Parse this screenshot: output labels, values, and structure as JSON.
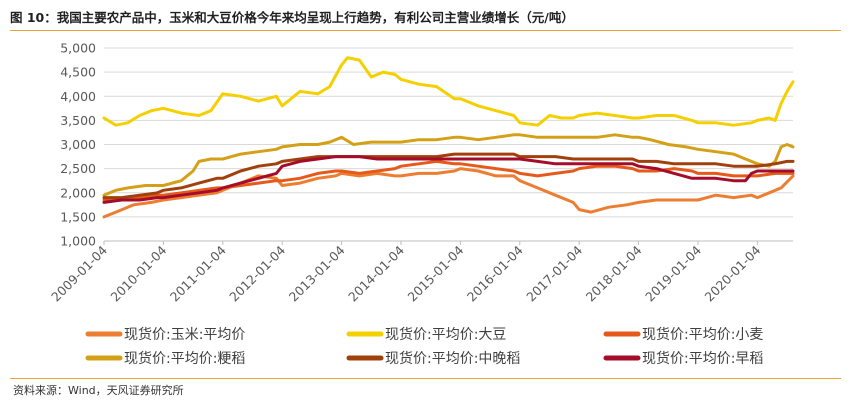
{
  "header": {
    "title": "图 10：我国主要农产品中，玉米和大豆价格今年来均呈现上行趋势，有利公司主营业绩增长（元/吨）"
  },
  "footer": {
    "source": "资料来源：Wind，天风证券研究所"
  },
  "chart_data": {
    "type": "line",
    "xlabel": "",
    "ylabel": "",
    "ylim": [
      1000,
      5000
    ],
    "y_ticks": [
      "5,000",
      "4,500",
      "4,000",
      "3,500",
      "3,000",
      "2,500",
      "2,000",
      "1,500",
      "1,000"
    ],
    "x_ticks": [
      "2009-01-04",
      "2010-01-04",
      "2011-01-04",
      "2012-01-04",
      "2013-01-04",
      "2014-01-04",
      "2015-01-04",
      "2016-01-04",
      "2017-01-04",
      "2018-01-04",
      "2019-01-04",
      "2020-01-04"
    ],
    "xlim": [
      2009.0,
      2020.6
    ],
    "grid": "horizontal",
    "legend_position": "bottom",
    "series": [
      {
        "name": "现货价:玉米:平均价",
        "color": "#ED7D31",
        "x": [
          2009.0,
          2009.2,
          2009.5,
          2009.8,
          2010.0,
          2010.3,
          2010.6,
          2010.9,
          2011.0,
          2011.3,
          2011.6,
          2011.9,
          2012.0,
          2012.3,
          2012.6,
          2012.9,
          2013.0,
          2013.3,
          2013.6,
          2013.9,
          2014.0,
          2014.3,
          2014.6,
          2014.9,
          2015.0,
          2015.3,
          2015.6,
          2015.9,
          2016.0,
          2016.3,
          2016.6,
          2016.8,
          2016.9,
          2017.0,
          2017.2,
          2017.5,
          2017.8,
          2018.0,
          2018.3,
          2018.6,
          2018.9,
          2019.0,
          2019.3,
          2019.6,
          2019.9,
          2020.0,
          2020.2,
          2020.4,
          2020.6
        ],
        "y": [
          1500,
          1600,
          1750,
          1800,
          1850,
          1900,
          1950,
          2000,
          2050,
          2200,
          2350,
          2300,
          2150,
          2200,
          2300,
          2350,
          2400,
          2350,
          2400,
          2350,
          2350,
          2400,
          2400,
          2450,
          2500,
          2450,
          2350,
          2350,
          2250,
          2100,
          1950,
          1850,
          1800,
          1650,
          1600,
          1700,
          1750,
          1800,
          1850,
          1850,
          1850,
          1850,
          1950,
          1900,
          1950,
          1900,
          2000,
          2100,
          2350
        ]
      },
      {
        "name": "现货价:平均价:大豆",
        "color": "#F5D000",
        "x": [
          2009.0,
          2009.2,
          2009.4,
          2009.6,
          2009.8,
          2010.0,
          2010.3,
          2010.6,
          2010.8,
          2011.0,
          2011.3,
          2011.6,
          2011.9,
          2012.0,
          2012.3,
          2012.6,
          2012.8,
          2013.0,
          2013.1,
          2013.3,
          2013.5,
          2013.7,
          2013.9,
          2014.0,
          2014.3,
          2014.6,
          2014.9,
          2015.0,
          2015.3,
          2015.6,
          2015.9,
          2016.0,
          2016.3,
          2016.5,
          2016.7,
          2016.9,
          2017.0,
          2017.3,
          2017.6,
          2017.9,
          2018.0,
          2018.3,
          2018.6,
          2018.9,
          2019.0,
          2019.3,
          2019.6,
          2019.9,
          2020.0,
          2020.2,
          2020.3,
          2020.4,
          2020.5,
          2020.6
        ],
        "y": [
          3550,
          3400,
          3450,
          3600,
          3700,
          3750,
          3650,
          3600,
          3700,
          4050,
          4000,
          3900,
          4000,
          3800,
          4100,
          4050,
          4200,
          4650,
          4800,
          4750,
          4400,
          4500,
          4450,
          4350,
          4250,
          4200,
          3950,
          3950,
          3800,
          3700,
          3600,
          3450,
          3400,
          3600,
          3550,
          3550,
          3600,
          3650,
          3600,
          3550,
          3550,
          3600,
          3600,
          3500,
          3450,
          3450,
          3400,
          3450,
          3500,
          3550,
          3500,
          3850,
          4100,
          4300
        ]
      },
      {
        "name": "现货价:平均价:小麦",
        "color": "#E55A1B",
        "x": [
          2009.0,
          2009.3,
          2009.6,
          2009.9,
          2010.0,
          2010.3,
          2010.6,
          2010.9,
          2011.0,
          2011.3,
          2011.6,
          2011.9,
          2012.0,
          2012.3,
          2012.6,
          2012.9,
          2013.0,
          2013.3,
          2013.6,
          2013.9,
          2014.0,
          2014.3,
          2014.6,
          2014.9,
          2015.0,
          2015.3,
          2015.6,
          2015.9,
          2016.0,
          2016.3,
          2016.6,
          2016.9,
          2017.0,
          2017.3,
          2017.6,
          2017.9,
          2018.0,
          2018.3,
          2018.6,
          2018.9,
          2019.0,
          2019.3,
          2019.6,
          2019.9,
          2020.0,
          2020.3,
          2020.6
        ],
        "y": [
          1850,
          1850,
          1900,
          1950,
          1950,
          2000,
          2050,
          2100,
          2100,
          2150,
          2200,
          2250,
          2250,
          2300,
          2400,
          2450,
          2450,
          2400,
          2450,
          2500,
          2550,
          2600,
          2650,
          2600,
          2600,
          2550,
          2500,
          2450,
          2400,
          2350,
          2400,
          2450,
          2500,
          2550,
          2550,
          2500,
          2450,
          2450,
          2500,
          2450,
          2400,
          2400,
          2350,
          2350,
          2350,
          2400,
          2400
        ]
      },
      {
        "name": "现货价:平均价:粳稻",
        "color": "#D4A017",
        "x": [
          2009.0,
          2009.2,
          2009.4,
          2009.7,
          2010.0,
          2010.3,
          2010.5,
          2010.6,
          2010.8,
          2011.0,
          2011.3,
          2011.6,
          2011.9,
          2012.0,
          2012.3,
          2012.6,
          2012.8,
          2013.0,
          2013.2,
          2013.5,
          2013.8,
          2014.0,
          2014.3,
          2014.6,
          2014.9,
          2015.0,
          2015.3,
          2015.6,
          2015.9,
          2016.0,
          2016.3,
          2016.6,
          2016.9,
          2017.0,
          2017.3,
          2017.6,
          2017.9,
          2018.0,
          2018.2,
          2018.5,
          2018.8,
          2019.0,
          2019.3,
          2019.6,
          2019.8,
          2019.9,
          2020.0,
          2020.2,
          2020.3,
          2020.4,
          2020.5,
          2020.6
        ],
        "y": [
          1950,
          2050,
          2100,
          2150,
          2150,
          2250,
          2450,
          2650,
          2700,
          2700,
          2800,
          2850,
          2900,
          2950,
          3000,
          3000,
          3050,
          3150,
          3000,
          3050,
          3050,
          3050,
          3100,
          3100,
          3150,
          3150,
          3100,
          3150,
          3200,
          3200,
          3150,
          3150,
          3150,
          3150,
          3150,
          3200,
          3150,
          3150,
          3100,
          3000,
          2950,
          2900,
          2850,
          2800,
          2700,
          2650,
          2600,
          2550,
          2650,
          2950,
          3000,
          2950
        ]
      },
      {
        "name": "现货价:平均价:中晚稻",
        "color": "#A0400C",
        "x": [
          2009.0,
          2009.3,
          2009.6,
          2009.9,
          2010.0,
          2010.3,
          2010.6,
          2010.9,
          2011.0,
          2011.3,
          2011.6,
          2011.9,
          2012.0,
          2012.3,
          2012.6,
          2012.9,
          2013.0,
          2013.3,
          2013.6,
          2013.9,
          2014.0,
          2014.3,
          2014.6,
          2014.9,
          2015.0,
          2015.3,
          2015.6,
          2015.9,
          2016.0,
          2016.3,
          2016.6,
          2016.9,
          2017.0,
          2017.3,
          2017.6,
          2017.9,
          2018.0,
          2018.3,
          2018.6,
          2018.9,
          2019.0,
          2019.3,
          2019.6,
          2019.9,
          2020.0,
          2020.3,
          2020.5,
          2020.6
        ],
        "y": [
          1900,
          1900,
          1950,
          2000,
          2050,
          2100,
          2200,
          2300,
          2300,
          2450,
          2550,
          2600,
          2650,
          2700,
          2750,
          2750,
          2750,
          2750,
          2750,
          2750,
          2750,
          2750,
          2750,
          2800,
          2800,
          2800,
          2800,
          2800,
          2750,
          2750,
          2750,
          2700,
          2700,
          2700,
          2700,
          2700,
          2650,
          2650,
          2600,
          2600,
          2600,
          2600,
          2550,
          2550,
          2550,
          2600,
          2650,
          2650
        ]
      },
      {
        "name": "现货价:平均价:早稻",
        "color": "#A50C2A",
        "x": [
          2009.0,
          2009.3,
          2009.6,
          2009.9,
          2010.0,
          2010.3,
          2010.6,
          2010.9,
          2011.0,
          2011.3,
          2011.6,
          2011.9,
          2012.0,
          2012.3,
          2012.6,
          2012.9,
          2013.0,
          2013.3,
          2013.6,
          2013.9,
          2014.0,
          2014.3,
          2014.6,
          2014.9,
          2015.0,
          2015.3,
          2015.6,
          2015.9,
          2016.0,
          2016.3,
          2016.6,
          2016.9,
          2017.0,
          2017.3,
          2017.6,
          2017.9,
          2018.0,
          2018.3,
          2018.6,
          2018.9,
          2019.0,
          2019.3,
          2019.6,
          2019.8,
          2019.9,
          2020.0,
          2020.3,
          2020.6
        ],
        "y": [
          1800,
          1850,
          1850,
          1900,
          1900,
          1950,
          2000,
          2050,
          2100,
          2200,
          2300,
          2400,
          2550,
          2650,
          2700,
          2750,
          2750,
          2750,
          2700,
          2700,
          2700,
          2700,
          2700,
          2700,
          2700,
          2700,
          2700,
          2700,
          2700,
          2650,
          2600,
          2600,
          2600,
          2600,
          2600,
          2600,
          2550,
          2500,
          2400,
          2300,
          2300,
          2300,
          2250,
          2250,
          2400,
          2450,
          2450,
          2450
        ]
      }
    ]
  }
}
